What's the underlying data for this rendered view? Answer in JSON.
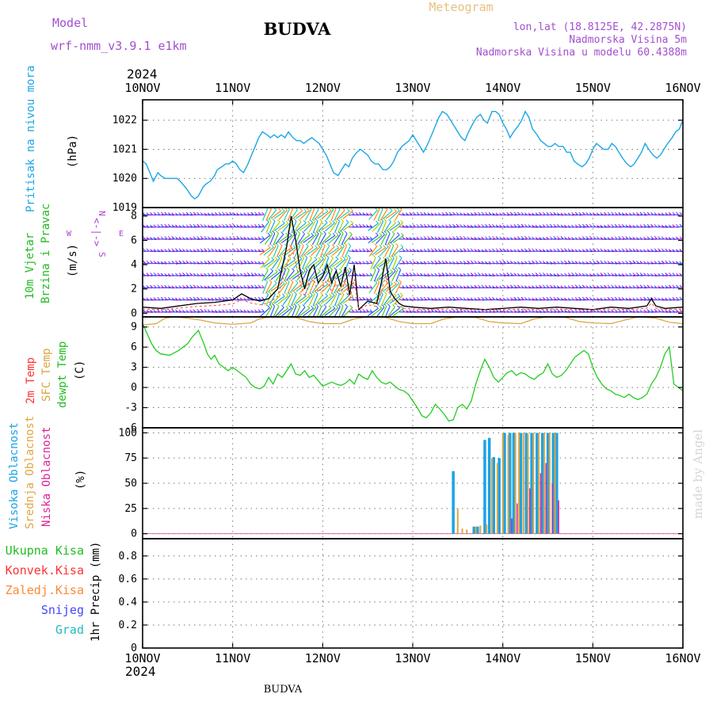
{
  "header": {
    "model_label": "Model",
    "model_name": "wrf-nmm_v3.9.1 e1km",
    "station": "BUDVA",
    "meteogram": "Meteogram",
    "lonlat": "lon,lat (18.8125E, 42.2875N)",
    "altitude": "Nadmorska Visina 5m",
    "model_altitude": "Nadmorska Visina u modelu 60.4388m",
    "year": "2024",
    "footer_station": "BUDVA",
    "credit": "made by Angel"
  },
  "colors": {
    "pressure": "#1da6e6",
    "dewpoint": "#22cc22",
    "sfc_temp": "#d9a441",
    "temp2m": "#ff3333",
    "wind_speed": "#000000",
    "gust": "#ff4444",
    "cloud_high": "#1aa3e8",
    "cloud_mid": "#e0a640",
    "cloud_low": "#dd2299",
    "precip_total": "#22bb22",
    "precip_conv": "#ff3333",
    "precip_freezing": "#ff8833",
    "precip_snow": "#4444ff",
    "precip_grad": "#22bbbb",
    "wind_arrows": [
      "#7711cc",
      "#9933dd",
      "#3355ff",
      "#11aadd",
      "#22ccaa",
      "#44cc22",
      "#aacc00",
      "#ff8811",
      "#ff2266"
    ]
  },
  "x_ticks": [
    "10NOV",
    "11NOV",
    "12NOV",
    "13NOV",
    "14NOV",
    "15NOV",
    "16NOV"
  ],
  "panels": {
    "pressure": {
      "label": "Pritisak na nivou mora",
      "unit": "(hPa)",
      "ticks": [
        "1019",
        "1020",
        "1021",
        "1022"
      ]
    },
    "wind": {
      "label1": "10m Vjetar",
      "label2": "Brzina i Pravac",
      "unit": "(m/s)",
      "ticks": [
        "0",
        "2",
        "4",
        "6",
        "8"
      ],
      "compass_n": "N",
      "compass_s": "S",
      "compass_w": "W",
      "compass_e": "E",
      "compass_bar": "<-|->"
    },
    "temp": {
      "label1": "2m Temp",
      "label2": "SFC Temp",
      "label3": "dewpt Temp",
      "unit": "(C)",
      "ticks": [
        "-6",
        "-3",
        "0",
        "3",
        "6",
        "9"
      ]
    },
    "cloud": {
      "label1": "Visoka Oblacnost",
      "label2": "Srednja Oblacnost",
      "label3": "Niska Oblacnost",
      "unit": "(%)",
      "ticks": [
        "0",
        "25",
        "50",
        "75",
        "100"
      ]
    },
    "precip": {
      "legend": [
        "Ukupna Kisa",
        "Konvek.Kisa",
        "Zaledj.Kisa",
        "Snijeg",
        "Grad"
      ],
      "unit": "1hr Precip (mm)",
      "ticks": [
        "0",
        "0.2",
        "0.4",
        "0.6",
        "0.8"
      ]
    }
  },
  "chart_data": [
    {
      "type": "line",
      "title": "",
      "ylabel": "Pritisak na nivou mora (hPa)",
      "xlabel": "",
      "x_unit": "days after 10NOV 2024 00UTC",
      "ylim": [
        1019,
        1022.7
      ],
      "grid": true,
      "series": [
        {
          "name": "Pritisak na nivou mora",
          "x": [
            0,
            0.04,
            0.08,
            0.12,
            0.17,
            0.2,
            0.25,
            0.33,
            0.38,
            0.42,
            0.5,
            0.54,
            0.58,
            0.62,
            0.67,
            0.7,
            0.75,
            0.8,
            0.83,
            0.88,
            0.92,
            0.96,
            1,
            1.04,
            1.08,
            1.12,
            1.17,
            1.21,
            1.25,
            1.29,
            1.33,
            1.38,
            1.42,
            1.46,
            1.5,
            1.54,
            1.58,
            1.62,
            1.67,
            1.71,
            1.75,
            1.79,
            1.83,
            1.88,
            1.92,
            1.96,
            2,
            2.04,
            2.08,
            2.12,
            2.17,
            2.21,
            2.25,
            2.29,
            2.33,
            2.38,
            2.42,
            2.46,
            2.5,
            2.54,
            2.58,
            2.62,
            2.67,
            2.71,
            2.75,
            2.79,
            2.83,
            2.88,
            2.92,
            2.96,
            3,
            3.04,
            3.08,
            3.12,
            3.17,
            3.21,
            3.25,
            3.29,
            3.33,
            3.38,
            3.42,
            3.46,
            3.5,
            3.54,
            3.58,
            3.62,
            3.67,
            3.71,
            3.75,
            3.79,
            3.83,
            3.88,
            3.92,
            3.96,
            4,
            4.04,
            4.08,
            4.12,
            4.17,
            4.21,
            4.25,
            4.29,
            4.33,
            4.38,
            4.42,
            4.46,
            4.5,
            4.54,
            4.58,
            4.62,
            4.67,
            4.71,
            4.75,
            4.79,
            4.83,
            4.88,
            4.92,
            4.96,
            5,
            5.04,
            5.08,
            5.12,
            5.17,
            5.21,
            5.25,
            5.29,
            5.33,
            5.38,
            5.42,
            5.46,
            5.5,
            5.54,
            5.58,
            5.62,
            5.67,
            5.71,
            5.75,
            5.79,
            5.83,
            5.88,
            5.92,
            5.96,
            6
          ],
          "values": [
            1020.6,
            1020.5,
            1020.2,
            1019.9,
            1020.2,
            1020.1,
            1020.0,
            1020.0,
            1020.0,
            1019.9,
            1019.6,
            1019.4,
            1019.3,
            1019.4,
            1019.7,
            1019.8,
            1019.9,
            1020.1,
            1020.3,
            1020.4,
            1020.5,
            1020.5,
            1020.6,
            1020.5,
            1020.3,
            1020.2,
            1020.5,
            1020.8,
            1021.1,
            1021.4,
            1021.6,
            1021.5,
            1021.4,
            1021.5,
            1021.4,
            1021.5,
            1021.4,
            1021.6,
            1021.4,
            1021.3,
            1021.3,
            1021.2,
            1021.3,
            1021.4,
            1021.3,
            1021.2,
            1021.0,
            1020.8,
            1020.5,
            1020.2,
            1020.1,
            1020.3,
            1020.5,
            1020.4,
            1020.7,
            1020.9,
            1021.0,
            1020.9,
            1020.8,
            1020.6,
            1020.5,
            1020.5,
            1020.3,
            1020.3,
            1020.4,
            1020.6,
            1020.9,
            1021.1,
            1021.2,
            1021.3,
            1021.5,
            1021.3,
            1021.1,
            1020.9,
            1021.2,
            1021.5,
            1021.8,
            1022.1,
            1022.3,
            1022.2,
            1022.0,
            1021.8,
            1021.6,
            1021.4,
            1021.3,
            1021.6,
            1021.9,
            1022.1,
            1022.2,
            1022.0,
            1021.9,
            1022.3,
            1022.3,
            1022.2,
            1021.9,
            1021.7,
            1021.4,
            1021.6,
            1021.8,
            1022.0,
            1022.3,
            1022.1,
            1021.7,
            1021.5,
            1021.3,
            1021.2,
            1021.1,
            1021.1,
            1021.2,
            1021.1,
            1021.1,
            1020.9,
            1020.9,
            1020.6,
            1020.5,
            1020.4,
            1020.5,
            1020.7,
            1021.0,
            1021.2,
            1021.1,
            1021.0,
            1021.0,
            1021.2,
            1021.1,
            1020.9,
            1020.7,
            1020.5,
            1020.4,
            1020.5,
            1020.7,
            1020.9,
            1021.2,
            1021.0,
            1020.8,
            1020.7,
            1020.8,
            1021.0,
            1021.2,
            1021.4,
            1021.6,
            1021.7,
            1022.0
          ]
        }
      ]
    },
    {
      "type": "line",
      "title": "",
      "ylabel": "10m Vjetar Brzina i Pravac (m/s)",
      "xlabel": "",
      "x_unit": "days after 10NOV 2024 00UTC",
      "ylim": [
        -0.3,
        8.7
      ],
      "grid": true,
      "series": [
        {
          "name": "10m Vjetar",
          "x": [
            0,
            0.2,
            0.4,
            0.6,
            0.8,
            0.9,
            1,
            1.1,
            1.2,
            1.3,
            1.4,
            1.5,
            1.6,
            1.65,
            1.7,
            1.75,
            1.8,
            1.85,
            1.9,
            1.95,
            2,
            2.05,
            2.1,
            2.15,
            2.2,
            2.25,
            2.3,
            2.35,
            2.4,
            2.5,
            2.6,
            2.65,
            2.7,
            2.75,
            2.8,
            2.85,
            2.9,
            3,
            3.2,
            3.4,
            3.6,
            3.8,
            4,
            4.2,
            4.4,
            4.6,
            4.8,
            5,
            5.2,
            5.4,
            5.6,
            5.65,
            5.7,
            5.8,
            6
          ],
          "values": [
            0.5,
            0.4,
            0.6,
            0.8,
            0.9,
            1.0,
            1.1,
            1.6,
            1.2,
            1.0,
            1.2,
            2.0,
            5.5,
            8.0,
            6.0,
            3.5,
            2.0,
            3.5,
            4.0,
            2.5,
            3.0,
            4.0,
            2.5,
            3.5,
            2.2,
            3.8,
            1.5,
            4.0,
            0.3,
            1.0,
            0.8,
            2.5,
            4.5,
            1.8,
            1.2,
            0.8,
            0.6,
            0.5,
            0.4,
            0.5,
            0.4,
            0.3,
            0.4,
            0.5,
            0.4,
            0.5,
            0.4,
            0.3,
            0.5,
            0.4,
            0.6,
            1.2,
            0.6,
            0.4,
            0.5
          ]
        }
      ]
    },
    {
      "type": "line",
      "title": "",
      "ylabel": "2m Temp / SFC Temp / dewpt Temp (C)",
      "xlabel": "",
      "x_unit": "days after 10NOV 2024 00UTC",
      "ylim": [
        -6,
        10.5
      ],
      "grid": true,
      "series": [
        {
          "name": "SFC Temp",
          "x": [
            0,
            0.15,
            0.25,
            0.35,
            0.5,
            0.65,
            0.8,
            1,
            1.2,
            1.3,
            1.4,
            1.5,
            1.7,
            1.85,
            2,
            2.2,
            2.35,
            2.5,
            2.7,
            2.85,
            3,
            3.2,
            3.35,
            3.5,
            3.7,
            3.85,
            4,
            4.2,
            4.35,
            4.5,
            4.7,
            4.85,
            5,
            5.2,
            5.35,
            5.5,
            5.7,
            5.85,
            6
          ],
          "values": [
            9.3,
            9.5,
            10.3,
            10.5,
            10.3,
            10.0,
            9.6,
            9.4,
            9.6,
            10.2,
            10.5,
            10.5,
            10.4,
            9.8,
            9.5,
            9.5,
            10.2,
            10.5,
            10.4,
            9.8,
            9.5,
            9.5,
            10.2,
            10.5,
            10.4,
            9.8,
            9.6,
            9.5,
            10.2,
            10.5,
            10.4,
            9.8,
            9.6,
            9.5,
            10.0,
            10.5,
            10.3,
            9.7,
            9.5
          ]
        },
        {
          "name": "dewpt Temp",
          "x": [
            0,
            0.05,
            0.1,
            0.15,
            0.2,
            0.3,
            0.4,
            0.5,
            0.55,
            0.62,
            0.68,
            0.72,
            0.76,
            0.8,
            0.85,
            0.9,
            0.95,
            1,
            1.05,
            1.1,
            1.15,
            1.2,
            1.25,
            1.3,
            1.35,
            1.4,
            1.45,
            1.5,
            1.55,
            1.6,
            1.65,
            1.7,
            1.75,
            1.8,
            1.85,
            1.9,
            1.95,
            2,
            2.05,
            2.1,
            2.15,
            2.2,
            2.25,
            2.3,
            2.35,
            2.4,
            2.45,
            2.5,
            2.55,
            2.6,
            2.65,
            2.7,
            2.75,
            2.8,
            2.85,
            2.9,
            2.95,
            3,
            3.05,
            3.1,
            3.15,
            3.2,
            3.25,
            3.3,
            3.35,
            3.4,
            3.45,
            3.5,
            3.55,
            3.6,
            3.65,
            3.7,
            3.75,
            3.8,
            3.85,
            3.9,
            3.95,
            4,
            4.05,
            4.1,
            4.15,
            4.2,
            4.25,
            4.3,
            4.35,
            4.4,
            4.45,
            4.5,
            4.55,
            4.6,
            4.65,
            4.7,
            4.75,
            4.8,
            4.85,
            4.9,
            4.95,
            5,
            5.05,
            5.1,
            5.15,
            5.2,
            5.25,
            5.3,
            5.35,
            5.4,
            5.45,
            5.5,
            5.55,
            5.6,
            5.65,
            5.7,
            5.75,
            5.8,
            5.85,
            5.9,
            5.95,
            6
          ],
          "values": [
            9.5,
            8.0,
            6.5,
            5.5,
            5.0,
            4.8,
            5.5,
            6.5,
            7.5,
            8.5,
            6.5,
            5.0,
            4.2,
            4.8,
            3.5,
            3.0,
            2.5,
            3.0,
            2.5,
            2.0,
            1.5,
            0.5,
            0.0,
            -0.2,
            0.2,
            1.5,
            0.5,
            2.0,
            1.5,
            2.5,
            3.5,
            2.0,
            1.8,
            2.5,
            1.5,
            1.8,
            1.0,
            0.2,
            0.5,
            0.8,
            0.5,
            0.3,
            0.6,
            1.2,
            0.5,
            2.0,
            1.5,
            1.2,
            2.5,
            1.5,
            0.8,
            0.5,
            0.8,
            0.2,
            -0.3,
            -0.5,
            -1.0,
            -2.0,
            -3.0,
            -4.2,
            -4.5,
            -3.8,
            -2.5,
            -3.2,
            -4.0,
            -5.0,
            -4.8,
            -3.0,
            -2.5,
            -3.2,
            -2.0,
            0.5,
            2.5,
            4.2,
            3.0,
            1.5,
            0.8,
            1.5,
            2.2,
            2.5,
            1.8,
            2.2,
            2.0,
            1.5,
            1.2,
            1.8,
            2.2,
            3.5,
            2.0,
            1.5,
            1.8,
            2.5,
            3.5,
            4.5,
            5.0,
            5.5,
            5.0,
            3.0,
            1.5,
            0.5,
            -0.2,
            -0.5,
            -1.0,
            -1.2,
            -1.5,
            -1.0,
            -1.5,
            -1.8,
            -1.5,
            -1.0,
            0.5,
            1.5,
            3.0,
            5.0,
            6.0,
            0.5,
            0.0,
            -0.5
          ]
        }
      ]
    },
    {
      "type": "bar",
      "title": "",
      "ylabel": "Oblacnost (%)",
      "xlabel": "",
      "x_unit": "days after 10NOV 2024 00UTC",
      "ylim": [
        -5,
        105
      ],
      "grid": true,
      "series": [
        {
          "name": "Visoka Oblacnost",
          "x": [
            3.45,
            3.68,
            3.72,
            3.8,
            3.85,
            3.9,
            3.96,
            4.02,
            4.08,
            4.12,
            4.2,
            4.26,
            4.32,
            4.38,
            4.44,
            4.5,
            4.56,
            4.6
          ],
          "values": [
            62,
            7,
            7,
            93,
            95,
            76,
            75,
            100,
            100,
            100,
            100,
            100,
            100,
            100,
            100,
            100,
            100,
            100
          ]
        },
        {
          "name": "Srednja Oblacnost",
          "x": [
            3.5,
            3.55,
            3.6,
            3.7,
            3.75,
            3.82,
            3.88,
            3.94,
            4.0,
            4.06,
            4.14,
            4.18,
            4.23,
            4.28,
            4.34,
            4.4,
            4.46,
            4.52,
            4.58
          ],
          "values": [
            25,
            5,
            4,
            7,
            8,
            9,
            75,
            70,
            100,
            98,
            100,
            100,
            100,
            99,
            100,
            100,
            100,
            100,
            100
          ]
        },
        {
          "name": "Niska Oblacnost",
          "x": [
            4.1,
            4.16,
            4.3,
            4.42,
            4.48,
            4.55,
            4.62
          ],
          "values": [
            15,
            30,
            45,
            60,
            70,
            50,
            33
          ]
        }
      ]
    },
    {
      "type": "bar",
      "title": "",
      "ylabel": "1hr Precip (mm)",
      "xlabel": "",
      "x_unit": "days after 10NOV 2024 00UTC",
      "ylim": [
        0,
        0.95
      ],
      "grid": true,
      "series": [
        {
          "name": "Ukupna Kisa",
          "x": [],
          "values": []
        },
        {
          "name": "Konvek.Kisa",
          "x": [],
          "values": []
        },
        {
          "name": "Zaledj.Kisa",
          "x": [],
          "values": []
        },
        {
          "name": "Snijeg",
          "x": [],
          "values": []
        },
        {
          "name": "Grad",
          "x": [],
          "values": []
        }
      ]
    }
  ]
}
